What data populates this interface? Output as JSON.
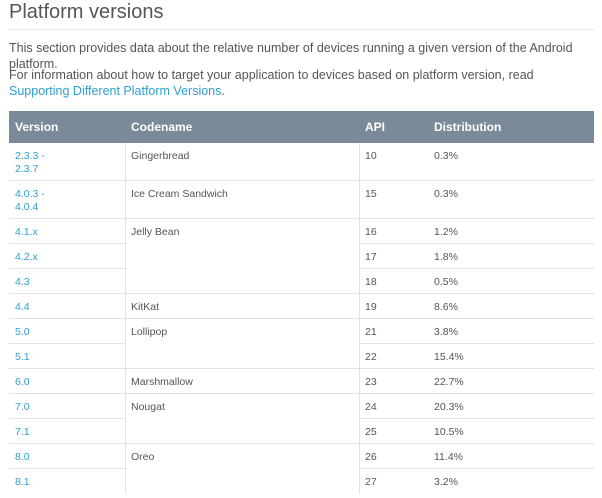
{
  "page": {
    "title": "Platform versions",
    "intro": "This section provides data about the relative number of devices running a given version of the Android platform.",
    "info_prefix": "For information about how to target your application to devices based on platform version, read ",
    "info_link": "Supporting Different Platform Versions",
    "info_suffix": "."
  },
  "table": {
    "headers": {
      "version": "Version",
      "codename": "Codename",
      "api": "API",
      "distribution": "Distribution"
    },
    "rows": [
      {
        "version": "2.3.3 - 2.3.7",
        "codename": "Gingerbread",
        "api": "10",
        "distribution": "0.3%"
      },
      {
        "version": "4.0.3 - 4.0.4",
        "codename": "Ice Cream Sandwich",
        "api": "15",
        "distribution": "0.3%"
      },
      {
        "version": "4.1.x",
        "codename": "Jelly Bean",
        "api": "16",
        "distribution": "1.2%"
      },
      {
        "version": "4.2.x",
        "codename": "",
        "api": "17",
        "distribution": "1.8%"
      },
      {
        "version": "4.3",
        "codename": "",
        "api": "18",
        "distribution": "0.5%"
      },
      {
        "version": "4.4",
        "codename": "KitKat",
        "api": "19",
        "distribution": "8.6%"
      },
      {
        "version": "5.0",
        "codename": "Lollipop",
        "api": "21",
        "distribution": "3.8%"
      },
      {
        "version": "5.1",
        "codename": "",
        "api": "22",
        "distribution": "15.4%"
      },
      {
        "version": "6.0",
        "codename": "Marshmallow",
        "api": "23",
        "distribution": "22.7%"
      },
      {
        "version": "7.0",
        "codename": "Nougat",
        "api": "24",
        "distribution": "20.3%"
      },
      {
        "version": "7.1",
        "codename": "",
        "api": "25",
        "distribution": "10.5%"
      },
      {
        "version": "8.0",
        "codename": "Oreo",
        "api": "26",
        "distribution": "11.4%"
      },
      {
        "version": "8.1",
        "codename": "",
        "api": "27",
        "distribution": "3.2%"
      }
    ]
  }
}
